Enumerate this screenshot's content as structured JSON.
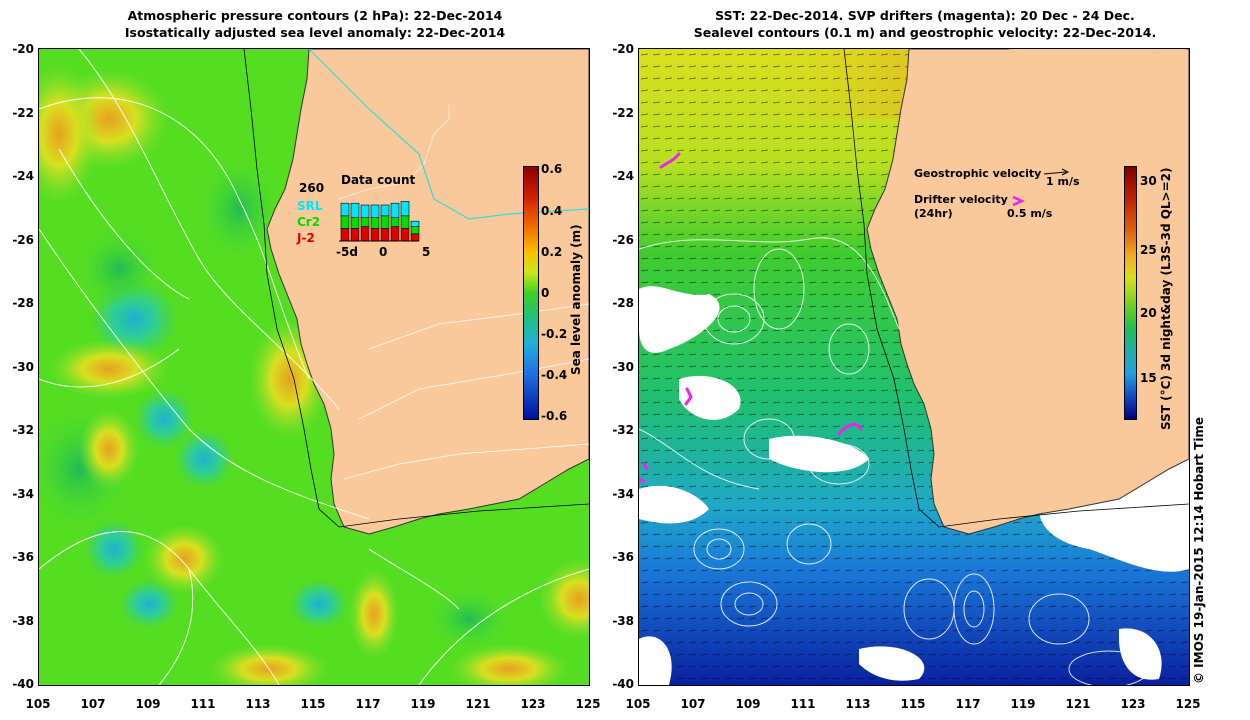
{
  "left_panel": {
    "title_line1": "Atmospheric pressure contours (2 hPa): 22-Dec-2014",
    "title_line2": "Isostatically adjusted sea level anomaly: 22-Dec-2014",
    "colorbar": {
      "label": "Sea level anomaly (m)",
      "ticks": [
        "0.6",
        "0.4",
        "0.2",
        "0",
        "-0.2",
        "-0.4",
        "-0.6"
      ]
    },
    "inset": {
      "title": "Data count",
      "max_count": "260",
      "satellites": [
        "SRL",
        "Cr2",
        "J-2"
      ],
      "satellite_colors": [
        "#00e5ff",
        "#00dd00",
        "#dd0000"
      ],
      "x_ticks": [
        "-5d",
        "0",
        "5"
      ]
    }
  },
  "right_panel": {
    "title_line1": "SST: 22-Dec-2014. SVP drifters (magenta): 20 Dec - 24 Dec.",
    "title_line2": "Sealevel contours (0.1 m) and geostrophic velocity: 22-Dec-2014.",
    "colorbar": {
      "label": "SST (°C) 3d night&day (L3S-3d QL>=2)",
      "ticks": [
        "30",
        "25",
        "20",
        "15"
      ]
    },
    "legend": {
      "geostrophic_label": "Geostrophic velocity",
      "geostrophic_scale": "1 m/s",
      "drifter_label": "Drifter velocity",
      "drifter_sub": "(24hr)",
      "drifter_scale": "0.5 m/s"
    }
  },
  "axes": {
    "lat_labels": [
      "-20",
      "-22",
      "-24",
      "-26",
      "-28",
      "-30",
      "-32",
      "-34",
      "-36",
      "-38",
      "-40"
    ],
    "lon_labels": [
      "105",
      "107",
      "109",
      "111",
      "113",
      "115",
      "117",
      "119",
      "121",
      "123",
      "125"
    ]
  },
  "copyright": "© IMOS 19-Jan-2015 12:14 Hobart Time",
  "colors": {
    "land": "#f9c89b",
    "sla_base": "#44dd22",
    "sst_cool": "#1466d6",
    "sst_warm": "#e8d21a",
    "drifter": "#ee22ee"
  }
}
